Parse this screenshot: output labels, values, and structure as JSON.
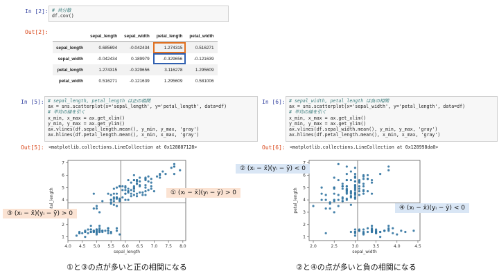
{
  "cell1": {
    "in_prompt": "In [2]:",
    "code_comment": "# 共分散",
    "code_line": "df.cov()",
    "out_prompt": "Out[2]:"
  },
  "cov_table": {
    "columns": [
      "sepal_length",
      "sepal_width",
      "petal_length",
      "petal_width"
    ],
    "rows": [
      {
        "label": "sepal_length",
        "values": [
          "0.685694",
          "-0.042434",
          "1.274315",
          "0.516271"
        ]
      },
      {
        "label": "sepal_width",
        "values": [
          "-0.042434",
          "0.189979",
          "-0.329656",
          "-0.121639"
        ]
      },
      {
        "label": "petal_length",
        "values": [
          "1.274315",
          "-0.329656",
          "3.116278",
          "1.295609"
        ]
      },
      {
        "label": "petal_width",
        "values": [
          "0.516271",
          "-0.121639",
          "1.295609",
          "0.581006"
        ]
      }
    ]
  },
  "cell5": {
    "in_prompt": "In [5]:",
    "lines": [
      {
        "text": "# sepal_length, petal_length は正の相関",
        "kind": "comment"
      },
      {
        "text": "ax = sns.scatterplot(x='sepal_length', y='petal_length', data=df)",
        "kind": "code"
      },
      {
        "text": "# 平均の線を引く",
        "kind": "comment"
      },
      {
        "text": "x_min, x_max = ax.get_xlim()",
        "kind": "code"
      },
      {
        "text": "y_min, y_max = ax.get_ylim()",
        "kind": "code"
      },
      {
        "text": "ax.vlines(df.sepal_length.mean(), y_min, y_max, 'gray')",
        "kind": "code"
      },
      {
        "text": "ax.hlines(df.petal_length.mean(), x_min, x_max, 'gray')",
        "kind": "code"
      }
    ],
    "out_prompt": "Out[5]:",
    "out_text": "<matplotlib.collections.LineCollection at 0x128887128>"
  },
  "cell6": {
    "in_prompt": "In [6]:",
    "lines": [
      {
        "text": "# sepal_width, petal_length は負の相関",
        "kind": "comment"
      },
      {
        "text": "ax = sns.scatterplot(x='sepal_width', y='petal_length', data=df)",
        "kind": "code"
      },
      {
        "text": "# 平均の線を引く",
        "kind": "comment"
      },
      {
        "text": "x_min, x_max = ax.get_xlim()",
        "kind": "code"
      },
      {
        "text": "y_min, y_max = ax.get_ylim()",
        "kind": "code"
      },
      {
        "text": "ax.vlines(df.sepal_width.mean(), y_min, y_max, 'gray')",
        "kind": "code"
      },
      {
        "text": "ax.hlines(df.petal_length.mean(), x_min, x_max, 'gray')",
        "kind": "code"
      }
    ],
    "out_prompt": "Out[6]:",
    "out_text": "<matplotlib.collections.LineCollection at 0x128998da0>"
  },
  "annotations": {
    "q1": "① (xᵢ − x̄)(yᵢ − ȳ) > 0",
    "q3": "③ (xᵢ − x̄)(yᵢ − ȳ) > 0",
    "q2": "② (xᵢ − x̄)(yᵢ − ȳ) < 0",
    "q4": "④ (xᵢ − x̄)(yᵢ − ȳ) < 0"
  },
  "captions": {
    "left": "①と③の点が多いと正の相関になる",
    "right": "②と④の点が多いと負の相関になる"
  },
  "colors": {
    "point": "#3274a1",
    "mean_line": "#808080",
    "highlight_orange": "#e07020",
    "highlight_blue": "#2f5fb0",
    "note_orange": "#fbe3d3",
    "note_blue": "#d9e6f5"
  },
  "chart_data": [
    {
      "type": "scatter",
      "title": "",
      "xlabel": "sepal_length",
      "ylabel": "petal_length",
      "xlim": [
        4.0,
        8.1
      ],
      "ylim": [
        0.7,
        7.2
      ],
      "xticks": [
        "4.0",
        "4.5",
        "5.0",
        "5.5",
        "6.0",
        "6.5",
        "7.0",
        "7.5",
        "8.0"
      ],
      "yticks": [
        "1",
        "2",
        "3",
        "4",
        "5",
        "6",
        "7"
      ],
      "mean_x": 5.84,
      "mean_y": 3.76,
      "x": [
        5.1,
        4.9,
        4.7,
        4.6,
        5.0,
        5.4,
        4.6,
        5.0,
        4.4,
        4.9,
        5.4,
        4.8,
        4.8,
        4.3,
        5.8,
        5.7,
        5.4,
        5.1,
        5.7,
        5.1,
        5.4,
        5.1,
        4.6,
        5.1,
        4.8,
        5.0,
        5.0,
        5.2,
        5.2,
        4.7,
        4.8,
        5.4,
        5.2,
        5.5,
        4.9,
        5.0,
        5.5,
        4.9,
        4.4,
        5.1,
        5.0,
        4.5,
        4.4,
        5.0,
        5.1,
        4.8,
        5.1,
        4.6,
        5.3,
        5.0,
        7.0,
        6.4,
        6.9,
        5.5,
        6.5,
        5.7,
        6.3,
        4.9,
        6.6,
        5.2,
        5.0,
        5.9,
        6.0,
        6.1,
        5.6,
        6.7,
        5.6,
        5.8,
        6.2,
        5.6,
        5.9,
        6.1,
        6.3,
        6.1,
        6.4,
        6.6,
        6.8,
        6.7,
        6.0,
        5.7,
        5.5,
        5.5,
        5.8,
        6.0,
        5.4,
        6.0,
        6.7,
        6.3,
        5.6,
        5.5,
        5.5,
        6.1,
        5.8,
        5.0,
        5.6,
        5.7,
        5.7,
        6.2,
        5.1,
        5.7,
        6.3,
        5.8,
        7.1,
        6.3,
        6.5,
        7.6,
        4.9,
        7.3,
        6.7,
        7.2,
        6.5,
        6.4,
        6.8,
        5.7,
        5.8,
        6.4,
        6.5,
        7.7,
        7.7,
        6.0,
        6.9,
        5.6,
        7.7,
        6.3,
        6.7,
        7.2,
        6.2,
        6.1,
        6.4,
        7.2,
        7.4,
        7.9,
        6.4,
        6.3,
        6.1,
        7.7,
        6.3,
        6.4,
        6.0,
        6.9,
        6.7,
        6.9,
        5.8,
        6.8,
        6.7,
        6.7,
        6.3,
        6.5,
        6.2,
        5.9
      ],
      "y": [
        1.4,
        1.4,
        1.3,
        1.5,
        1.4,
        1.7,
        1.4,
        1.5,
        1.4,
        1.5,
        1.5,
        1.6,
        1.4,
        1.1,
        1.2,
        1.5,
        1.3,
        1.4,
        1.7,
        1.5,
        1.7,
        1.5,
        1.0,
        1.7,
        1.9,
        1.6,
        1.6,
        1.5,
        1.4,
        1.6,
        1.6,
        1.5,
        1.5,
        1.4,
        1.5,
        1.2,
        1.3,
        1.4,
        1.3,
        1.5,
        1.3,
        1.3,
        1.3,
        1.6,
        1.9,
        1.4,
        1.6,
        1.4,
        1.5,
        1.4,
        4.7,
        4.5,
        4.9,
        4.0,
        4.6,
        4.5,
        4.7,
        3.3,
        4.6,
        3.9,
        3.5,
        4.2,
        4.0,
        4.7,
        3.6,
        4.4,
        4.5,
        4.1,
        4.5,
        3.9,
        4.8,
        4.0,
        4.9,
        4.7,
        4.3,
        4.4,
        4.8,
        5.0,
        4.5,
        3.5,
        3.8,
        3.7,
        3.9,
        5.1,
        4.5,
        4.5,
        4.7,
        4.4,
        4.1,
        4.0,
        4.4,
        4.6,
        4.0,
        3.3,
        4.2,
        4.2,
        4.2,
        4.3,
        3.0,
        4.1,
        6.0,
        5.1,
        5.9,
        5.6,
        5.8,
        6.6,
        4.5,
        6.3,
        5.8,
        6.1,
        5.1,
        5.3,
        5.5,
        5.0,
        5.1,
        5.3,
        5.5,
        6.7,
        6.9,
        5.0,
        5.7,
        4.9,
        6.7,
        4.9,
        5.7,
        6.0,
        4.8,
        4.9,
        5.6,
        5.8,
        6.1,
        6.4,
        5.6,
        5.1,
        5.6,
        6.1,
        5.6,
        5.5,
        4.8,
        5.4,
        5.6,
        5.1,
        5.1,
        5.9,
        5.7,
        5.2,
        5.0,
        5.2,
        5.4,
        5.1
      ]
    },
    {
      "type": "scatter",
      "title": "",
      "xlabel": "sepal_width",
      "ylabel": "petal_length",
      "xlim": [
        1.9,
        4.55
      ],
      "ylim": [
        0.7,
        7.2
      ],
      "xticks": [
        "2.0",
        "2.5",
        "3.0",
        "3.5",
        "4.0",
        "4.5"
      ],
      "yticks": [
        "1",
        "2",
        "3",
        "4",
        "5",
        "6",
        "7"
      ],
      "mean_x": 3.06,
      "mean_y": 3.76,
      "x": [
        3.5,
        3.0,
        3.2,
        3.1,
        3.6,
        3.9,
        3.4,
        3.4,
        2.9,
        3.1,
        3.7,
        3.4,
        3.0,
        3.0,
        4.0,
        4.4,
        3.9,
        3.5,
        3.8,
        3.8,
        3.4,
        3.7,
        3.6,
        3.3,
        3.4,
        3.0,
        3.4,
        3.5,
        3.4,
        3.2,
        3.1,
        3.4,
        4.1,
        4.2,
        3.1,
        3.2,
        3.5,
        3.6,
        3.0,
        3.4,
        3.5,
        2.3,
        3.2,
        3.5,
        3.8,
        3.0,
        3.8,
        3.2,
        3.7,
        3.3,
        3.2,
        3.2,
        3.1,
        2.3,
        2.8,
        2.8,
        3.3,
        2.4,
        2.9,
        2.7,
        2.0,
        3.0,
        2.2,
        2.9,
        2.9,
        3.1,
        3.0,
        2.7,
        2.2,
        2.5,
        3.2,
        2.8,
        2.5,
        2.8,
        2.9,
        3.0,
        2.8,
        3.0,
        2.9,
        2.6,
        2.4,
        2.4,
        2.7,
        2.7,
        3.0,
        3.4,
        3.1,
        2.3,
        3.0,
        2.5,
        2.6,
        3.0,
        2.6,
        2.3,
        2.7,
        3.0,
        2.9,
        2.9,
        2.5,
        2.8,
        3.3,
        2.7,
        3.0,
        2.9,
        3.0,
        3.0,
        2.5,
        2.9,
        2.5,
        3.6,
        3.2,
        2.7,
        3.0,
        2.5,
        2.8,
        3.2,
        3.0,
        3.8,
        2.6,
        2.2,
        3.2,
        2.8,
        2.8,
        2.7,
        3.3,
        3.2,
        2.8,
        3.0,
        2.8,
        3.0,
        2.8,
        3.8,
        2.8,
        2.8,
        2.6,
        3.0,
        3.4,
        3.1,
        3.0,
        3.1,
        3.1,
        3.1,
        2.7,
        3.2,
        3.3,
        3.0,
        2.5,
        3.0,
        3.4,
        3.0
      ],
      "y": [
        1.4,
        1.4,
        1.3,
        1.5,
        1.4,
        1.7,
        1.4,
        1.5,
        1.4,
        1.5,
        1.5,
        1.6,
        1.4,
        1.1,
        1.2,
        1.5,
        1.3,
        1.4,
        1.7,
        1.5,
        1.7,
        1.5,
        1.0,
        1.7,
        1.9,
        1.6,
        1.6,
        1.5,
        1.4,
        1.6,
        1.6,
        1.5,
        1.5,
        1.4,
        1.5,
        1.2,
        1.3,
        1.4,
        1.3,
        1.5,
        1.3,
        1.3,
        1.3,
        1.6,
        1.9,
        1.4,
        1.6,
        1.4,
        1.5,
        1.4,
        4.7,
        4.5,
        4.9,
        4.0,
        4.6,
        4.5,
        4.7,
        3.3,
        4.6,
        3.9,
        3.5,
        4.2,
        4.0,
        4.7,
        3.6,
        4.4,
        4.5,
        4.1,
        4.5,
        3.9,
        4.8,
        4.0,
        4.9,
        4.7,
        4.3,
        4.4,
        4.8,
        5.0,
        4.5,
        3.5,
        3.8,
        3.7,
        3.9,
        5.1,
        4.5,
        4.5,
        4.7,
        4.4,
        4.1,
        4.0,
        4.4,
        4.6,
        4.0,
        3.3,
        4.2,
        4.2,
        4.2,
        4.3,
        3.0,
        4.1,
        6.0,
        5.1,
        5.9,
        5.6,
        5.8,
        6.6,
        4.5,
        6.3,
        5.8,
        6.1,
        5.1,
        5.3,
        5.5,
        5.0,
        5.1,
        5.3,
        5.5,
        6.7,
        6.9,
        5.0,
        5.7,
        4.9,
        6.7,
        4.9,
        5.7,
        6.0,
        4.8,
        4.9,
        5.6,
        5.8,
        6.1,
        6.4,
        5.6,
        5.1,
        5.6,
        6.1,
        5.6,
        5.5,
        4.8,
        5.4,
        5.6,
        5.1,
        5.1,
        5.9,
        5.7,
        5.2,
        5.0,
        5.2,
        5.4,
        5.1
      ]
    }
  ]
}
